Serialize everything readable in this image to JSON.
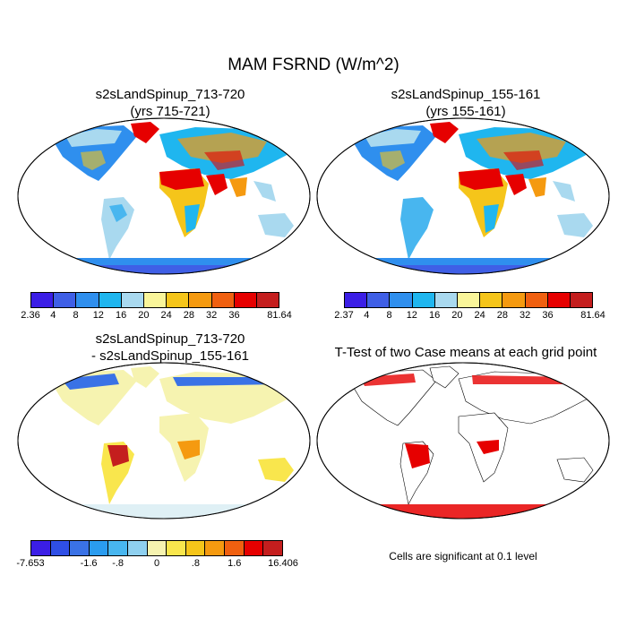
{
  "title": "MAM FSRND (W/m^2)",
  "panels": [
    {
      "title_line1": "s2sLandSpinup_713-720",
      "title_line2": "(yrs 715-721)"
    },
    {
      "title_line1": "s2sLandSpinup_155-161",
      "title_line2": "(yrs 155-161)"
    },
    {
      "title_line1": "s2sLandSpinup_713-720",
      "title_line2": "- s2sLandSpinup_155-161"
    },
    {
      "title_line1": "T-Test of two Case means at each grid point",
      "title_line2": ""
    }
  ],
  "colorbars": {
    "panel1": {
      "labels": [
        "2.36",
        "4",
        "8",
        "12",
        "16",
        "20",
        "24",
        "28",
        "32",
        "36",
        "81.64"
      ],
      "colors": [
        "#3b1ee6",
        "#3f5fe6",
        "#2f8fee",
        "#1fb6ef",
        "#a9d9ef",
        "#f9f59a",
        "#f5c51a",
        "#f59a10",
        "#f06010",
        "#e60000",
        "#c41e1e"
      ]
    },
    "panel2": {
      "labels": [
        "2.37",
        "4",
        "8",
        "12",
        "16",
        "20",
        "24",
        "28",
        "32",
        "36",
        "81.64"
      ],
      "colors": [
        "#3b1ee6",
        "#3f5fe6",
        "#2f8fee",
        "#1fb6ef",
        "#a9d9ef",
        "#f9f59a",
        "#f5c51a",
        "#f59a10",
        "#f06010",
        "#e60000",
        "#c41e1e"
      ]
    },
    "panel3": {
      "labels": [
        "-7.653",
        "-1.6",
        "-.8",
        "0",
        ".8",
        "1.6",
        "16.406"
      ],
      "colors": [
        "#3b1ee6",
        "#2f4fe6",
        "#3a72e6",
        "#2a9cef",
        "#48b6ef",
        "#8fd0ef",
        "#f6f3b0",
        "#f9e64d",
        "#f5c51a",
        "#f59a10",
        "#f06010",
        "#e60000",
        "#c41e1e"
      ]
    }
  },
  "ttest_note": "Cells are significant at 0.1 level"
}
